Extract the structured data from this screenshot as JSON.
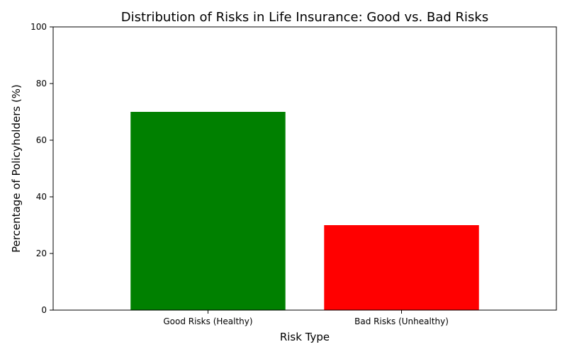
{
  "chart_data": {
    "type": "bar",
    "title": "Distribution of Risks in Life Insurance: Good vs. Bad Risks",
    "xlabel": "Risk Type",
    "ylabel": "Percentage of Policyholders (%)",
    "categories": [
      "Good Risks (Healthy)",
      "Bad Risks (Unhealthy)"
    ],
    "values": [
      70,
      30
    ],
    "colors": [
      "#008000",
      "#ff0000"
    ],
    "ylim": [
      0,
      100
    ],
    "yticks": [
      0,
      20,
      40,
      60,
      80,
      100
    ],
    "grid": false,
    "legend": "none"
  }
}
